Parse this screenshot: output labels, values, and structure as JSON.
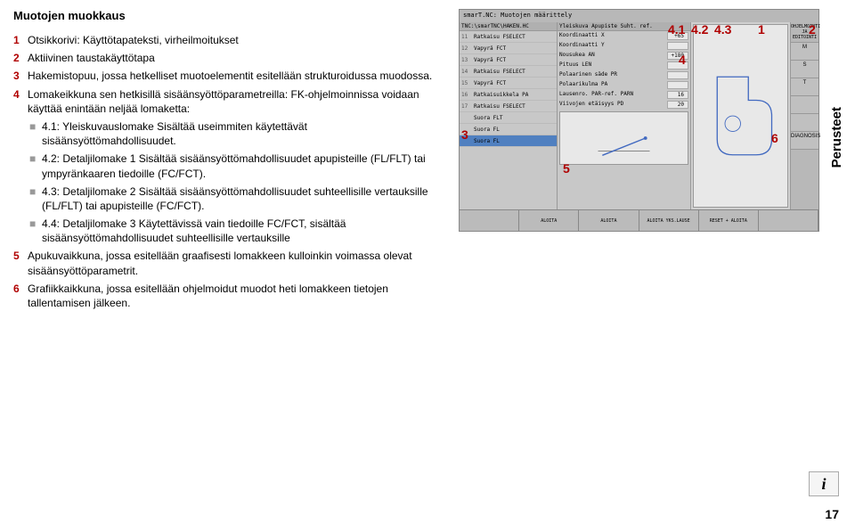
{
  "title": "Muotojen muokkaus",
  "items": [
    {
      "n": "1",
      "text": "Otsikkorivi: Käyttötapateksti, virheilmoitukset"
    },
    {
      "n": "2",
      "text": "Aktiivinen taustakäyttötapa"
    },
    {
      "n": "3",
      "text": "Hakemistopuu, jossa hetkelliset muotoelementit esitellään strukturoidussa muodossa."
    },
    {
      "n": "4",
      "text": "Lomakeikkuna sen hetkisillä sisäänsyöttöparametreilla: FK-ohjelmoinnissa voidaan käyttää enintään neljää lomaketta:"
    }
  ],
  "subitems": [
    {
      "b": "■",
      "text": "4.1: Yleiskuvauslomake\nSisältää useimmiten käytettävät sisäänsyöttömahdollisuudet."
    },
    {
      "b": "■",
      "text": "4.2: Detaljilomake 1\nSisältää sisäänsyöttömahdollisuudet apupisteille (FL/FLT) tai ympyränkaaren tiedoille (FC/FCT)."
    },
    {
      "b": "■",
      "text": "4.3: Detaljilomake 2\nSisältää sisäänsyöttömahdollisuudet suhteellisille vertauksille (FL/FLT) tai apupisteille (FC/FCT)."
    },
    {
      "b": "■",
      "text": "4.4: Detaljilomake 3\nKäytettävissä vain tiedoille FC/FCT, sisältää sisäänsyöttömahdollisuudet suhteellisille vertauksille"
    }
  ],
  "items2": [
    {
      "n": "5",
      "text": "Apukuvaikkuna, jossa esitellään graafisesti lomakkeen kulloinkin voimassa olevat sisäänsyöttöparametrit."
    },
    {
      "n": "6",
      "text": "Grafiikkaikkuna, jossa esitellään ohjelmoidut muodot heti lomakkeen tietojen tallentamisen jälkeen."
    }
  ],
  "screenshot": {
    "title": "smarT.NC: Muotojen määrittely",
    "side_header": "OHJELMOINTI JA EDITOINTI",
    "path": "TNC:\\smarTNC\\HAKEN.HC",
    "mid_head": "Yleiskuva Apupiste Suht. ref.",
    "tree": [
      {
        "num": "11",
        "label": "Ratkaisu FSELECT"
      },
      {
        "num": "12",
        "label": "Vapyrä FCT"
      },
      {
        "num": "13",
        "label": "Vapyrä FCT"
      },
      {
        "num": "14",
        "label": "Ratkaisu FSELECT"
      },
      {
        "num": "15",
        "label": "Vapyrä FCT"
      },
      {
        "num": "16",
        "label": "Ratkaisuikkela PA"
      },
      {
        "num": "17",
        "label": "Ratkaisu FSELECT"
      },
      {
        "num": "",
        "label": "Suora FLT"
      },
      {
        "num": "",
        "label": "Suora FL"
      },
      {
        "num": "",
        "label": "Suora FL"
      }
    ],
    "params": [
      {
        "label": "Koordinaatti X",
        "val": "+65"
      },
      {
        "label": "Koordinaatti Y",
        "val": ""
      },
      {
        "label": "Nousukea AN",
        "val": "+180"
      },
      {
        "label": "Pituus LEN",
        "val": ""
      },
      {
        "label": "Polaarinen säde PR",
        "val": ""
      },
      {
        "label": "Polaarikulma PA",
        "val": ""
      },
      {
        "label": "Lausenro. PAR-ref. PARN",
        "val": "16"
      },
      {
        "label": "Viivojen etäisyys PD",
        "val": "20"
      }
    ],
    "side_btns": [
      "M",
      "S",
      "T",
      "",
      "",
      "DIAGNOSIS"
    ],
    "bottom_btns": [
      "",
      "ALOITA",
      "ALOITA",
      "ALOITA YKS.LAUSE",
      "RESET + ALOITA",
      ""
    ]
  },
  "annotations": {
    "a1": "1",
    "a2": "2",
    "a3": "3",
    "a4": "4",
    "a41": "4.1",
    "a42": "4.2",
    "a43": "4.3",
    "a5": "5",
    "a6": "6"
  },
  "tab_right": "Perusteet",
  "page_num": "17",
  "colors": {
    "accent": "#b00000",
    "bullet": "#999999"
  }
}
